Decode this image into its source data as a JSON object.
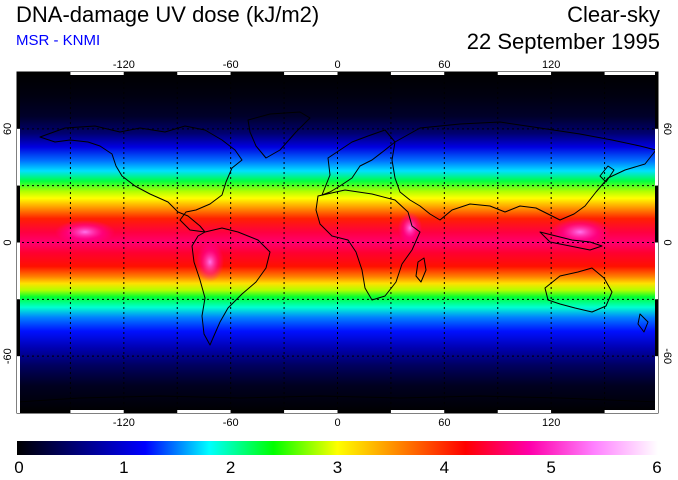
{
  "header": {
    "title": "DNA-damage UV dose (kJ/m2)",
    "source": "MSR - KNMI",
    "condition": "Clear-sky",
    "date": "22 September 1995"
  },
  "map": {
    "projection": "equirectangular",
    "lon_range": [
      -180,
      180
    ],
    "lat_range": [
      -90,
      90
    ],
    "grid": true,
    "lon_ticks": [
      -120,
      -60,
      0,
      60,
      120
    ],
    "lat_ticks": [
      60,
      0,
      -60
    ],
    "lon_tick_labels": [
      "-120",
      "-60",
      "0",
      "60",
      "120"
    ],
    "lat_tick_labels": [
      "60",
      "0",
      "-60"
    ],
    "coastlines": true
  },
  "colorbar": {
    "min": 0,
    "max": 6,
    "labels": [
      "0",
      "1",
      "2",
      "3",
      "4",
      "5",
      "6"
    ],
    "stops": [
      "#000000",
      "#000080",
      "#0000ff",
      "#00ffff",
      "#00ff00",
      "#ffff00",
      "#ff8000",
      "#ff0000",
      "#ff00aa",
      "#ff80ff",
      "#ffffff"
    ]
  },
  "colors": {
    "subtitle": "#0000ff"
  }
}
